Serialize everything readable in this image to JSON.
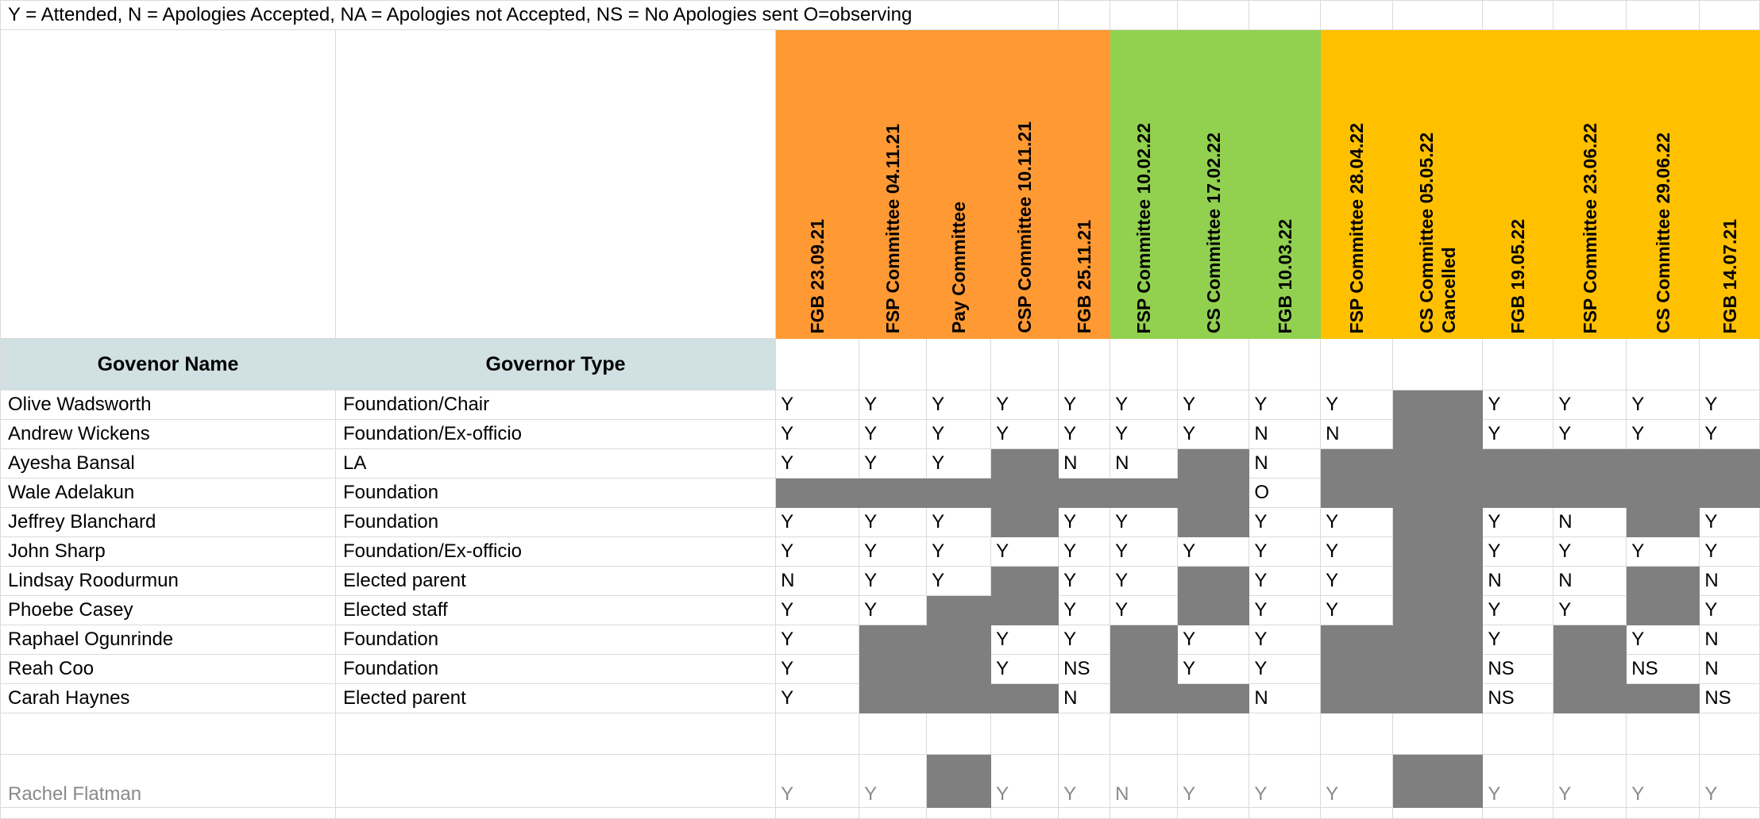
{
  "legend": "Y = Attended,   N = Apologies Accepted,   NA = Apologies not Accepted,   NS = No Apologies sent   O=observing",
  "columns": [
    "Govenor Name",
    "Governor Type"
  ],
  "meetings": [
    {
      "label": "FGB 23.09.21",
      "color": "#ff9933"
    },
    {
      "label": "FSP Committee 04.11.21",
      "color": "#ff9933"
    },
    {
      "label": "Pay Committee",
      "color": "#ff9933"
    },
    {
      "label": "CSP Committee 10.11.21",
      "color": "#ff9933"
    },
    {
      "label": "FGB 25.11.21",
      "color": "#ff9933"
    },
    {
      "label": "FSP Committee 10.02.22",
      "color": "#92d050"
    },
    {
      "label": "CS Committee 17.02.22",
      "color": "#92d050"
    },
    {
      "label": "FGB 10.03.22",
      "color": "#92d050"
    },
    {
      "label": "FSP Committee 28.04.22",
      "color": "#ffc000"
    },
    {
      "label": "CS Committee 05.05.22 Cancelled",
      "color": "#ffc000"
    },
    {
      "label": "FGB 19.05.22",
      "color": "#ffc000"
    },
    {
      "label": "FSP Committee 23.06.22",
      "color": "#ffc000"
    },
    {
      "label": "CS Committee 29.06.22",
      "color": "#ffc000"
    },
    {
      "label": "FGB  14.07.21",
      "color": "#ffc000"
    }
  ],
  "governors": [
    {
      "name": "Olive Wadsworth",
      "type": "Foundation/Chair",
      "cells": [
        "Y",
        "Y",
        "Y",
        "Y",
        "Y",
        "Y",
        "Y",
        "Y",
        "Y",
        "#",
        "Y",
        "Y",
        "Y",
        "Y"
      ]
    },
    {
      "name": "Andrew Wickens",
      "type": "Foundation/Ex-officio",
      "cells": [
        "Y",
        "Y",
        "Y",
        "Y",
        "Y",
        "Y",
        "Y",
        "N",
        "N",
        "#",
        "Y",
        "Y",
        "Y",
        "Y"
      ]
    },
    {
      "name": "Ayesha Bansal",
      "type": "LA",
      "cells": [
        "Y",
        "Y",
        "Y",
        "#",
        "N",
        "N",
        "#",
        "N",
        "#",
        "#",
        "#",
        "#",
        "#",
        "#"
      ]
    },
    {
      "name": "Wale Adelakun",
      "type": "Foundation",
      "cells": [
        "#",
        "#",
        "#",
        "#",
        "#",
        "#",
        "#",
        "O",
        "#",
        "#",
        "#",
        "#",
        "#",
        "#"
      ]
    },
    {
      "name": "Jeffrey Blanchard",
      "type": "Foundation",
      "cells": [
        "Y",
        "Y",
        "Y",
        "#",
        "Y",
        "Y",
        "#",
        "Y",
        "Y",
        "#",
        "Y",
        "N",
        "#",
        "Y"
      ]
    },
    {
      "name": "John Sharp",
      "type": "Foundation/Ex-officio",
      "cells": [
        "Y",
        "Y",
        "Y",
        "Y",
        "Y",
        "Y",
        "Y",
        "Y",
        "Y",
        "#",
        "Y",
        "Y",
        "Y",
        "Y"
      ]
    },
    {
      "name": "Lindsay Roodurmun",
      "type": "Elected parent",
      "cells": [
        "N",
        "Y",
        "Y",
        "#",
        "Y",
        "Y",
        "#",
        "Y",
        "Y",
        "#",
        "N",
        "N",
        "#",
        "N"
      ]
    },
    {
      "name": "Phoebe Casey",
      "type": "Elected staff",
      "cells": [
        "Y",
        "Y",
        "#",
        "#",
        "Y",
        "Y",
        "#",
        "Y",
        "Y",
        "#",
        "Y",
        "Y",
        "#",
        "Y"
      ]
    },
    {
      "name": "Raphael Ogunrinde",
      "type": "Foundation",
      "cells": [
        "Y",
        "#",
        "#",
        "Y",
        "Y",
        "#",
        "Y",
        "Y",
        "#",
        "#",
        "Y",
        "#",
        "Y",
        "N"
      ]
    },
    {
      "name": "Reah Coo",
      "type": "Foundation",
      "cells": [
        "Y",
        "#",
        "#",
        "Y",
        "NS",
        "#",
        "Y",
        "Y",
        "#",
        "#",
        "NS",
        "#",
        "NS",
        "N"
      ]
    },
    {
      "name": "Carah Haynes",
      "type": "Elected parent",
      "cells": [
        "Y",
        "#",
        "#",
        "#",
        "N",
        "#",
        "#",
        "N",
        "#",
        "#",
        "NS",
        "#",
        "#",
        "NS"
      ]
    }
  ],
  "former": {
    "name": "Rachel Flatman",
    "type": "",
    "cells": [
      "Y",
      "Y",
      "#",
      "Y",
      "Y",
      "N",
      "Y",
      "Y",
      "Y",
      "#",
      "Y",
      "Y",
      "Y",
      "Y"
    ]
  }
}
